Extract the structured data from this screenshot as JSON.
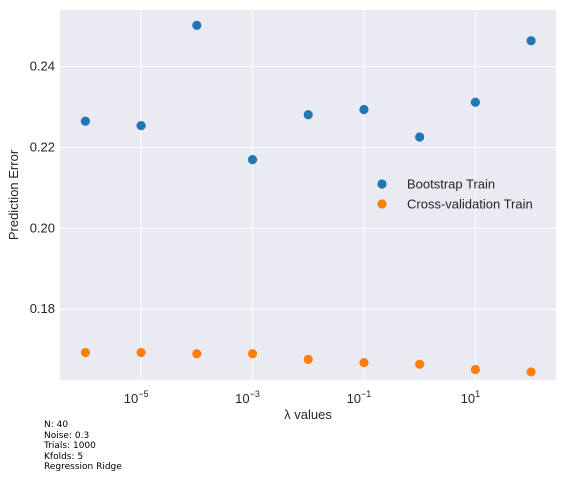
{
  "chart_data": {
    "type": "scatter",
    "xscale": "log",
    "grid": true,
    "xlabel": "λ values",
    "ylabel": "Prediction Error",
    "x": [
      1e-06,
      1e-05,
      0.0001,
      0.001,
      0.01,
      0.1,
      1,
      10,
      100
    ],
    "series": [
      {
        "name": "Bootstrap Train",
        "color": "#1f77b4",
        "values": [
          0.2265,
          0.2254,
          0.2502,
          0.217,
          0.2281,
          0.2294,
          0.2226,
          0.2312,
          0.2464
        ]
      },
      {
        "name": "Cross-validation Train",
        "color": "#ff7f0e",
        "values": [
          0.1693,
          0.1693,
          0.169,
          0.169,
          0.1676,
          0.1668,
          0.1664,
          0.1651,
          0.1645
        ]
      }
    ],
    "xlim": [
      3.5e-07,
      280.0
    ],
    "ylim": [
      0.1625,
      0.254
    ],
    "xticks": [
      1e-05,
      0.001,
      0.1,
      10
    ],
    "xtick_labels": [
      {
        "base": "10",
        "exp": "−5"
      },
      {
        "base": "10",
        "exp": "−3"
      },
      {
        "base": "10",
        "exp": "−1"
      },
      {
        "base": "10",
        "exp": "1"
      }
    ],
    "yticks": [
      0.18,
      0.2,
      0.22,
      0.24
    ],
    "ytick_labels": [
      "0.18",
      "0.20",
      "0.22",
      "0.24"
    ],
    "legend_position": "right",
    "background": "#eaeaf2"
  },
  "notes": [
    "N: 40",
    "Noise: 0.3",
    "Trials: 1000",
    "Kfolds: 5",
    "Regression Ridge"
  ]
}
